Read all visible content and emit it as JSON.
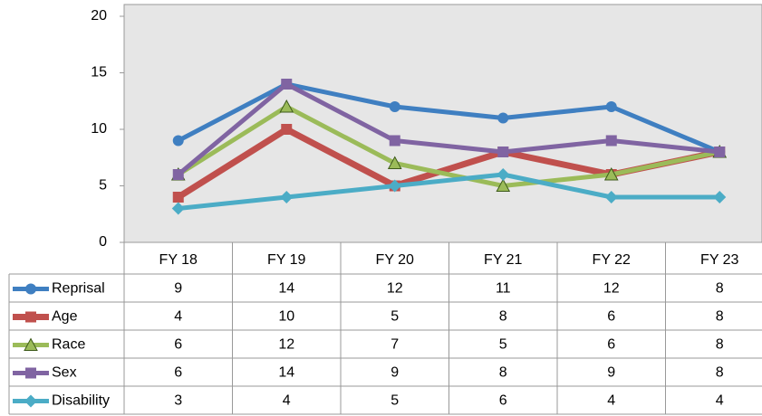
{
  "chart_data": {
    "type": "line",
    "categories": [
      "FY 18",
      "FY 19",
      "FY 20",
      "FY 21",
      "FY 22",
      "FY 23"
    ],
    "series": [
      {
        "name": "Reprisal",
        "color": "#3f7fc1",
        "marker": "circle",
        "values": [
          9,
          14,
          12,
          11,
          12,
          8
        ]
      },
      {
        "name": "Age",
        "color": "#c0504d",
        "marker": "square",
        "values": [
          4,
          10,
          5,
          8,
          6,
          8
        ]
      },
      {
        "name": "Race",
        "color": "#9bbb59",
        "marker": "triangle",
        "values": [
          6,
          12,
          7,
          5,
          6,
          8
        ]
      },
      {
        "name": "Sex",
        "color": "#8064a2",
        "marker": "square",
        "values": [
          6,
          14,
          9,
          8,
          9,
          8
        ]
      },
      {
        "name": "Disability",
        "color": "#4bacc6",
        "marker": "diamond",
        "values": [
          3,
          4,
          5,
          6,
          4,
          4
        ]
      }
    ],
    "ylim": [
      0,
      20
    ],
    "yticks": [
      0,
      5,
      10,
      15,
      20
    ],
    "grid": false
  }
}
